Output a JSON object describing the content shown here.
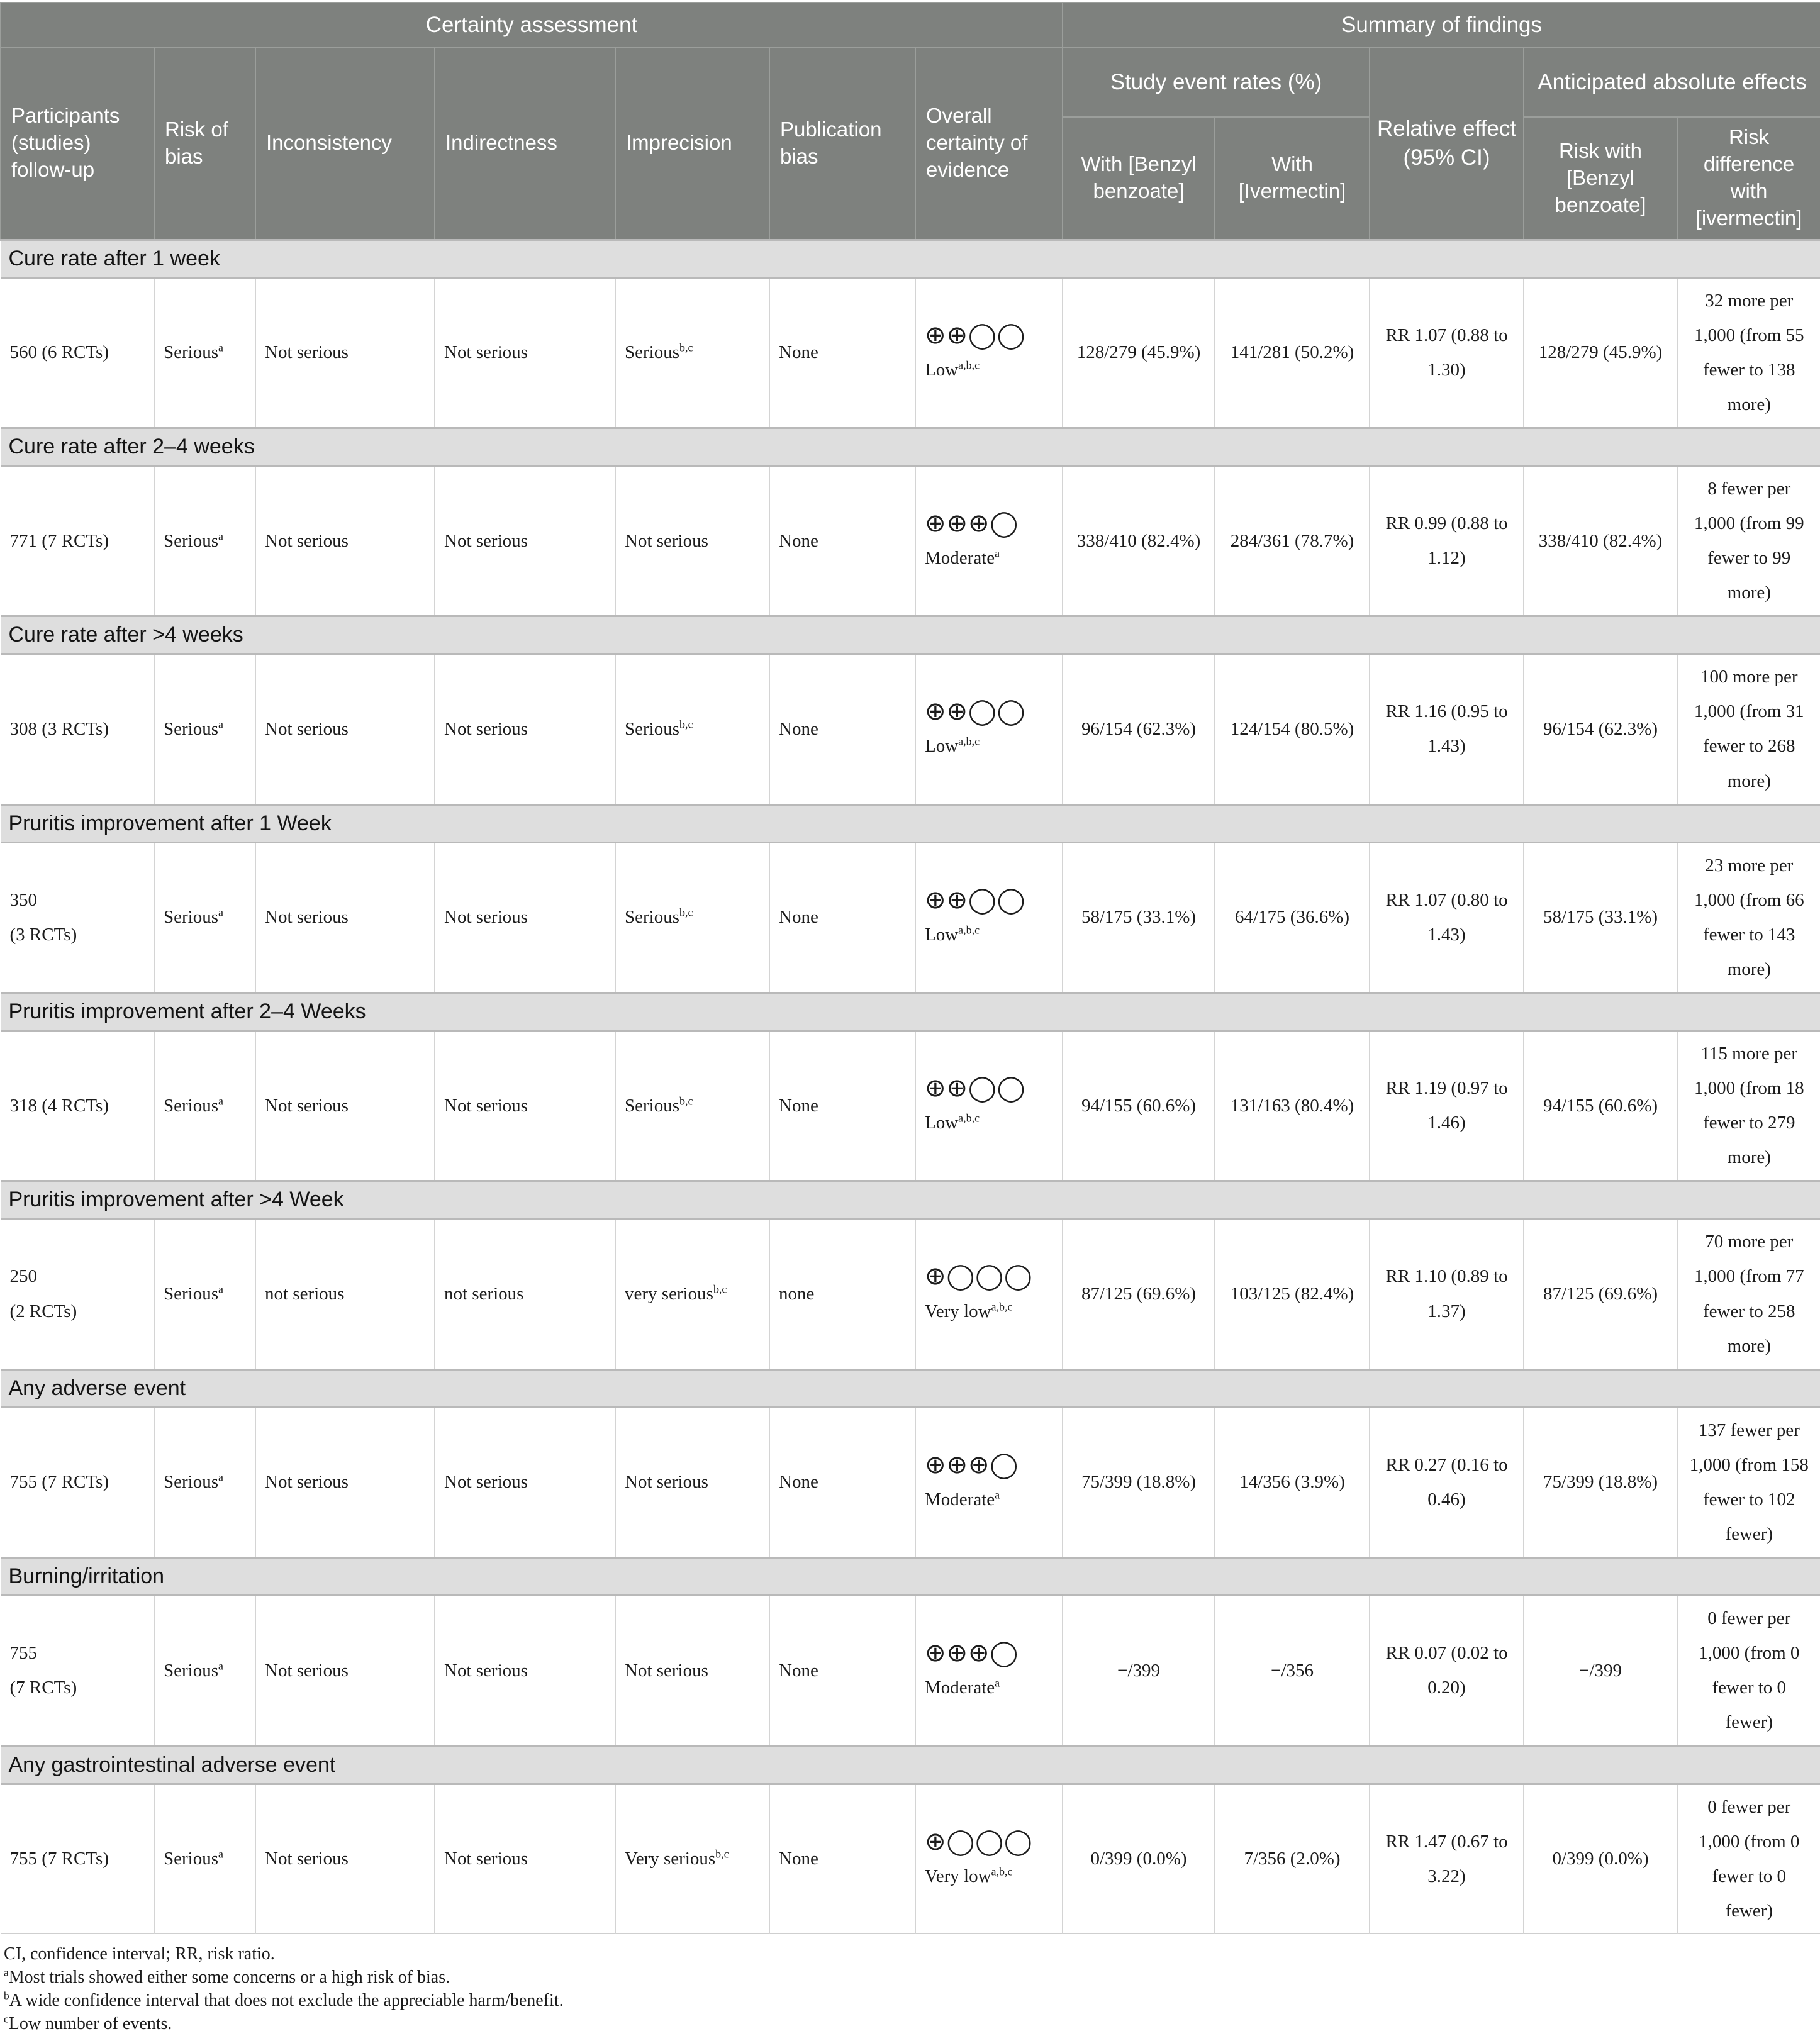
{
  "header": {
    "certainty_group": "Certainty assessment",
    "findings_group": "Summary of findings",
    "columns": [
      "Participants (studies) follow-up",
      "Risk of bias",
      "Inconsistency",
      "Indirectness",
      "Imprecision",
      "Publication bias",
      "Overall certainty of evidence"
    ],
    "study_event_rates_label": "Study event rates (%)",
    "relative_effect_label": "Relative effect (95% CI)",
    "absolute_effects_label": "Anticipated absolute effects",
    "with_benzyl": "With [Benzyl benzoate]",
    "with_ivermectin": "With [Ivermectin]",
    "risk_with_benzyl": "Risk with [Benzyl benzoate]",
    "risk_difference_ivermectin": "Risk difference with [ivermectin]"
  },
  "sections": [
    {
      "title": "Cure rate after 1 week",
      "row": {
        "participants": [
          "560 (6 RCTs)"
        ],
        "risk_of_bias": {
          "text": "Serious",
          "sup": "a"
        },
        "inconsistency": {
          "text": "Not serious"
        },
        "indirectness": {
          "text": "Not serious"
        },
        "imprecision": {
          "text": "Serious",
          "sup": "b,c"
        },
        "publication_bias": {
          "text": "None"
        },
        "certainty": {
          "symbols": "⊕⊕◯◯",
          "label": "Low",
          "sup": "a,b,c",
          "stacked": false
        },
        "rate_benzyl": "128/279 (45.9%)",
        "rate_ivermectin": "141/281 (50.2%)",
        "relative_effect": "RR 1.07 (0.88 to 1.30)",
        "risk_benzyl": "128/279 (45.9%)",
        "risk_difference": "32 more per 1,000 (from 55 fewer to 138 more)"
      }
    },
    {
      "title": "Cure rate after 2–4 weeks",
      "row": {
        "participants": [
          "771 (7 RCTs)"
        ],
        "risk_of_bias": {
          "text": "Serious",
          "sup": "a"
        },
        "inconsistency": {
          "text": "Not serious"
        },
        "indirectness": {
          "text": "Not serious"
        },
        "imprecision": {
          "text": "Not serious"
        },
        "publication_bias": {
          "text": "None"
        },
        "certainty": {
          "symbols": "⊕⊕⊕◯",
          "label": "Moderate",
          "sup": "a",
          "stacked": true
        },
        "rate_benzyl": "338/410 (82.4%)",
        "rate_ivermectin": "284/361 (78.7%)",
        "relative_effect": "RR 0.99 (0.88 to 1.12)",
        "risk_benzyl": "338/410 (82.4%)",
        "risk_difference": "8 fewer per 1,000 (from 99 fewer to 99 more)"
      }
    },
    {
      "title": "Cure rate after >4 weeks",
      "row": {
        "participants": [
          "308 (3 RCTs)"
        ],
        "risk_of_bias": {
          "text": "Serious",
          "sup": "a"
        },
        "inconsistency": {
          "text": "Not serious"
        },
        "indirectness": {
          "text": "Not serious"
        },
        "imprecision": {
          "text": "Serious",
          "sup": "b,c"
        },
        "publication_bias": {
          "text": "None"
        },
        "certainty": {
          "symbols": "⊕⊕◯◯",
          "label": "Low",
          "sup": "a,b,c",
          "stacked": false
        },
        "rate_benzyl": "96/154 (62.3%)",
        "rate_ivermectin": "124/154 (80.5%)",
        "relative_effect": "RR 1.16 (0.95 to 1.43)",
        "risk_benzyl": "96/154 (62.3%)",
        "risk_difference": "100 more per 1,000 (from 31 fewer to 268 more)"
      }
    },
    {
      "title": "Pruritis improvement after 1 Week",
      "row": {
        "participants": [
          "350",
          "(3 RCTs)"
        ],
        "risk_of_bias": {
          "text": "Serious",
          "sup": "a"
        },
        "inconsistency": {
          "text": "Not serious"
        },
        "indirectness": {
          "text": "Not serious"
        },
        "imprecision": {
          "text": "Serious",
          "sup": "b,c"
        },
        "publication_bias": {
          "text": "None"
        },
        "certainty": {
          "symbols": "⊕⊕◯◯",
          "label": "Low",
          "sup": "a,b,c",
          "stacked": false
        },
        "rate_benzyl": "58/175 (33.1%)",
        "rate_ivermectin": "64/175 (36.6%)",
        "relative_effect": "RR 1.07 (0.80 to 1.43)",
        "risk_benzyl": "58/175 (33.1%)",
        "risk_difference": "23 more per 1,000 (from 66 fewer to 143 more)"
      }
    },
    {
      "title": "Pruritis improvement after 2–4 Weeks",
      "row": {
        "participants": [
          "318 (4 RCTs)"
        ],
        "risk_of_bias": {
          "text": "Serious",
          "sup": "a"
        },
        "inconsistency": {
          "text": "Not serious"
        },
        "indirectness": {
          "text": "Not serious"
        },
        "imprecision": {
          "text": "Serious",
          "sup": "b,c"
        },
        "publication_bias": {
          "text": "None"
        },
        "certainty": {
          "symbols": "⊕⊕◯◯",
          "label": "Low",
          "sup": "a,b,c",
          "stacked": true
        },
        "rate_benzyl": "94/155 (60.6%)",
        "rate_ivermectin": "131/163 (80.4%)",
        "relative_effect": "RR 1.19 (0.97 to 1.46)",
        "risk_benzyl": "94/155 (60.6%)",
        "risk_difference": "115 more per 1,000 (from 18 fewer to 279 more)"
      }
    },
    {
      "title": "Pruritis improvement after >4 Week",
      "row": {
        "participants": [
          "250",
          "(2 RCTs)"
        ],
        "risk_of_bias": {
          "text": "Serious",
          "sup": "a"
        },
        "inconsistency": {
          "text": "not serious"
        },
        "indirectness": {
          "text": "not serious"
        },
        "imprecision": {
          "text": "very serious",
          "sup": "b,c"
        },
        "publication_bias": {
          "text": "none"
        },
        "certainty": {
          "symbols": "⊕◯◯◯",
          "label": "Very low",
          "sup": "a,b,c",
          "stacked": true
        },
        "rate_benzyl": "87/125 (69.6%)",
        "rate_ivermectin": "103/125 (82.4%)",
        "relative_effect": "RR 1.10 (0.89 to 1.37)",
        "risk_benzyl": "87/125 (69.6%)",
        "risk_difference": "70 more per 1,000 (from 77 fewer to 258 more)"
      }
    },
    {
      "title": "Any adverse event",
      "row": {
        "participants": [
          "755 (7 RCTs)"
        ],
        "risk_of_bias": {
          "text": "Serious",
          "sup": "a"
        },
        "inconsistency": {
          "text": "Not serious"
        },
        "indirectness": {
          "text": "Not serious"
        },
        "imprecision": {
          "text": "Not serious"
        },
        "publication_bias": {
          "text": "None"
        },
        "certainty": {
          "symbols": "⊕⊕⊕◯",
          "label": "Moderate",
          "sup": "a",
          "stacked": true
        },
        "rate_benzyl": "75/399 (18.8%)",
        "rate_ivermectin": "14/356 (3.9%)",
        "relative_effect": "RR 0.27 (0.16 to 0.46)",
        "risk_benzyl": "75/399 (18.8%)",
        "risk_difference": "137 fewer per 1,000 (from 158 fewer to 102 fewer)"
      }
    },
    {
      "title": "Burning/irritation",
      "row": {
        "participants": [
          "755",
          "(7 RCTs)"
        ],
        "risk_of_bias": {
          "text": "Serious",
          "sup": "a"
        },
        "inconsistency": {
          "text": "Not serious"
        },
        "indirectness": {
          "text": "Not serious"
        },
        "imprecision": {
          "text": "Not serious"
        },
        "publication_bias": {
          "text": "None"
        },
        "certainty": {
          "symbols": "⊕⊕⊕◯",
          "label": "Moderate",
          "sup": "a",
          "stacked": true
        },
        "rate_benzyl": "−/399",
        "rate_ivermectin": "−/356",
        "relative_effect": "RR 0.07 (0.02 to 0.20)",
        "risk_benzyl": "−/399",
        "risk_difference": "0 fewer per 1,000 (from 0 fewer to 0 fewer)"
      }
    },
    {
      "title": "Any gastrointestinal adverse event",
      "row": {
        "participants": [
          "755 (7 RCTs)"
        ],
        "risk_of_bias": {
          "text": "Serious",
          "sup": "a"
        },
        "inconsistency": {
          "text": "Not serious"
        },
        "indirectness": {
          "text": "Not serious"
        },
        "imprecision": {
          "text": "Very serious",
          "sup": "b,c"
        },
        "publication_bias": {
          "text": "None"
        },
        "certainty": {
          "symbols": "⊕◯◯◯",
          "label": "Very low",
          "sup": "a,b,c",
          "stacked": false
        },
        "rate_benzyl": "0/399 (0.0%)",
        "rate_ivermectin": "7/356 (2.0%)",
        "relative_effect": "RR 1.47 (0.67 to 3.22)",
        "risk_benzyl": "0/399 (0.0%)",
        "risk_difference": "0 fewer per 1,000 (from 0 fewer to 0 fewer)"
      }
    }
  ],
  "footnotes": {
    "abbreviations": "CI, confidence interval; RR, risk ratio.",
    "a": {
      "marker": "a",
      "text": "Most trials showed either some concerns or a high risk of bias."
    },
    "b": {
      "marker": "b",
      "text": "A wide confidence interval that does not exclude the appreciable harm/benefit."
    },
    "c": {
      "marker": "c",
      "text": "Low number of events."
    }
  }
}
